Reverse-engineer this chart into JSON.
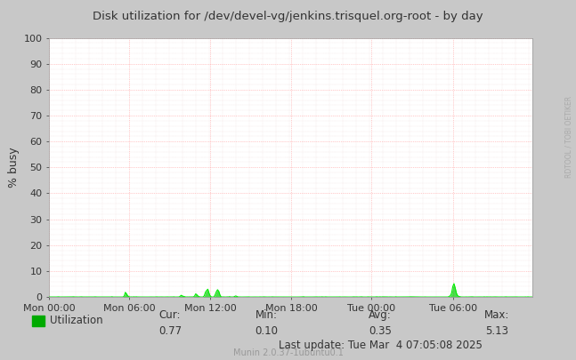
{
  "title": "Disk utilization for /dev/devel-vg/jenkins.trisquel.org-root - by day",
  "ylabel": "% busy",
  "background_color": "#C8C8C8",
  "plot_bg_color": "#FFFFFF",
  "grid_color_major": "#FF9999",
  "grid_color_minor": "#DDBBBB",
  "line_color": "#00EE00",
  "fill_color": "#00CC00",
  "ylim": [
    0,
    100
  ],
  "yticks": [
    0,
    10,
    20,
    30,
    40,
    50,
    60,
    70,
    80,
    90,
    100
  ],
  "xtick_labels": [
    "Mon 00:00",
    "Mon 06:00",
    "Mon 12:00",
    "Mon 18:00",
    "Tue 00:00",
    "Tue 06:00"
  ],
  "cur": "0.77",
  "min": "0.10",
  "avg": "0.35",
  "max": "5.13",
  "last_update": "Last update: Tue Mar  4 07:05:08 2025",
  "munin_version": "Munin 2.0.37-1ubuntu0.1",
  "legend_label": "Utilization",
  "legend_color": "#00AA00",
  "watermark": "RDTOOL / TOBI OETIKER",
  "title_color": "#333333",
  "tick_color": "#333333",
  "watermark_color": "#AAAAAA",
  "n_points": 400,
  "xtick_positions": [
    0,
    66,
    133,
    200,
    266,
    333
  ]
}
